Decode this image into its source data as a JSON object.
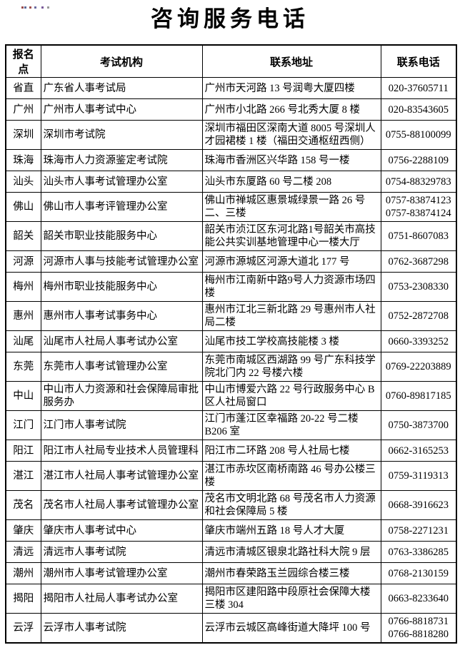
{
  "title": "咨询服务电话",
  "artifacts": {
    "dots": [
      {
        "x": 30,
        "color": "#9a4a4a"
      },
      {
        "x": 34,
        "color": "#5a6a9a"
      },
      {
        "x": 41,
        "color": "#a05050"
      },
      {
        "x": 48,
        "color": "#6a6aa0"
      },
      {
        "x": 58,
        "color": "#7a5a9a"
      },
      {
        "x": 66,
        "color": "#9a9a9a"
      }
    ]
  },
  "table": {
    "headers": [
      "报名点",
      "考试机构",
      "联系地址",
      "联系电话"
    ],
    "rows": [
      {
        "point": "省直",
        "org": "广东省人事考试局",
        "address": "广州市天河路 13 号润粤大厦四楼",
        "phones": [
          "020-37605711"
        ]
      },
      {
        "point": "广州",
        "org": "广州市人事考试中心",
        "address": "广州市小北路 266 号北秀大厦 8 楼",
        "phones": [
          "020-83543605"
        ]
      },
      {
        "point": "深圳",
        "org": "深圳市考试院",
        "address": "深圳市福田区深南大道 8005 号深圳人才园裙楼 1 楼（福田交通枢纽西侧）",
        "phones": [
          "0755-88100099"
        ]
      },
      {
        "point": "珠海",
        "org": "珠海市人力资源鉴定考试院",
        "address": "珠海市香洲区兴华路 158 号一楼",
        "phones": [
          "0756-2288109"
        ]
      },
      {
        "point": "汕头",
        "org": "汕头市人事考试管理办公室",
        "address": "汕头市东厦路 60 号二楼 208",
        "phones": [
          "0754-88329783"
        ]
      },
      {
        "point": "佛山",
        "org": "佛山市人事考评管理办公室",
        "address": "佛山市禅城区惠景城绿景一路 26 号二、三楼",
        "phones": [
          "0757-83874123",
          "0757-83874124"
        ]
      },
      {
        "point": "韶关",
        "org": "韶关市职业技能服务中心",
        "address": "韶关市浈江区东河北路1号韶关市高技能公共实训基地管理中心一楼大厅",
        "phones": [
          "0751-8607083"
        ]
      },
      {
        "point": "河源",
        "org": "河源市人事与技能考试管理办公室",
        "address": "河源市源城区河源大道北 177 号",
        "phones": [
          "0762-3687298"
        ]
      },
      {
        "point": "梅州",
        "org": "梅州市职业技能服务中心",
        "address": "梅州市江南新中路9号人力资源市场四楼",
        "phones": [
          "0753-2308330"
        ]
      },
      {
        "point": "惠州",
        "org": "惠州市人事考试事务中心",
        "address": "惠州市江北三新北路 29 号惠州市人社局二楼",
        "phones": [
          "0752-2872708"
        ]
      },
      {
        "point": "汕尾",
        "org": "汕尾市人社局人事考试办公室",
        "address": "汕尾市技工学校高技能楼 3 楼",
        "phones": [
          "0660-3393252"
        ]
      },
      {
        "point": "东莞",
        "org": "东莞市人事考试管理办公室",
        "address": "东莞市南城区西湖路 99 号广东科技学院北门内 22 号楼六楼",
        "phones": [
          "0769-22203889"
        ]
      },
      {
        "point": "中山",
        "org": "中山市人力资源和社会保障局审批服务办",
        "address": "中山市博爱六路 22 号行政服务中心 B 区人社局窗口",
        "phones": [
          "0760-89817185"
        ]
      },
      {
        "point": "江门",
        "org": "江门市人事考试院",
        "address": "江门市蓬江区幸福路 20-22 号二楼 B206 室",
        "phones": [
          "0750-3873700"
        ]
      },
      {
        "point": "阳江",
        "org": "阳江市人社局专业技术人员管理科",
        "address": "阳江市二环路 208 号人社局七楼",
        "phones": [
          "0662-3165253"
        ]
      },
      {
        "point": "湛江",
        "org": "湛江市人社局人事考试管理办公室",
        "address": "湛江市赤坎区南桥南路 46 号办公楼三楼",
        "phones": [
          "0759-3119313"
        ]
      },
      {
        "point": "茂名",
        "org": "茂名市人社局人事考试管理办公室",
        "address": "茂名市文明北路 68 号茂名市人力资源和社会保障局 5 楼",
        "phones": [
          "0668-3916623"
        ]
      },
      {
        "point": "肇庆",
        "org": "肇庆市人事考试中心",
        "address": "肇庆市端州五路 18 号人才大厦",
        "phones": [
          "0758-2271231"
        ]
      },
      {
        "point": "清远",
        "org": "清远市人事考试院",
        "address": "清远市清城区银泉北路社科大院 9 层",
        "phones": [
          "0763-3386285"
        ]
      },
      {
        "point": "潮州",
        "org": "潮州市人事考试管理办公室",
        "address": "潮州市春荣路玉兰园综合楼三楼",
        "phones": [
          "0768-2130159"
        ]
      },
      {
        "point": "揭阳",
        "org": "揭阳市人社局人事考试办公室",
        "address": "揭阳市区建阳路中段原社会保障大楼三楼 304",
        "phones": [
          "0663-8233640"
        ]
      },
      {
        "point": "云浮",
        "org": "云浮市人事考试院",
        "address": "云浮市云城区高峰街道大降坪 100 号",
        "phones": [
          "0766-8818731",
          "0766-8818280"
        ]
      }
    ]
  }
}
